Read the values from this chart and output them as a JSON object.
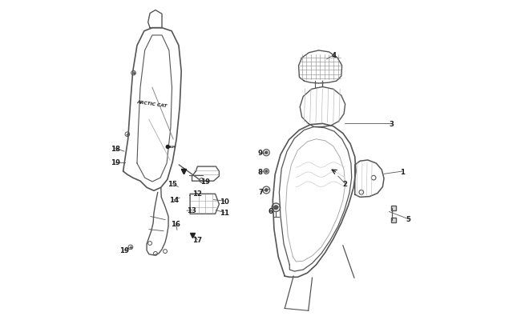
{
  "bg_color": "#ffffff",
  "line_color": "#555555",
  "dark_color": "#222222",
  "fig_width": 6.5,
  "fig_height": 4.06,
  "dpi": 100
}
